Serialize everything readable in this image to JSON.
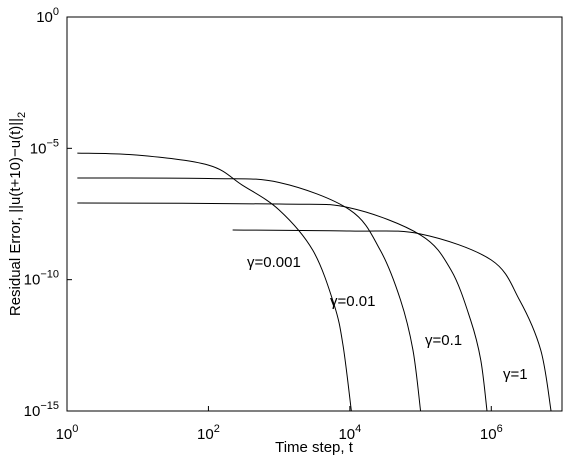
{
  "chart_data": {
    "type": "line",
    "x_label": "Time step, t",
    "y_label": "Residual Error, ||u(t+10)−u(t)||",
    "y_label_sub": "2",
    "log_x": true,
    "log_y": true,
    "grid": false,
    "color": "#000000",
    "xlim": [
      1,
      10000000
    ],
    "ylim": [
      1e-15,
      1
    ],
    "xticks": [
      {
        "value": 1,
        "label": "10",
        "exp": "0"
      },
      {
        "value": 100,
        "label": "10",
        "exp": "2"
      },
      {
        "value": 10000,
        "label": "10",
        "exp": "4"
      },
      {
        "value": 1000000,
        "label": "10",
        "exp": "6"
      }
    ],
    "yticks": [
      {
        "value": 1e-15,
        "label": "10",
        "exp": "−15"
      },
      {
        "value": 1e-10,
        "label": "10",
        "exp": "−10"
      },
      {
        "value": 1e-05,
        "label": "10",
        "exp": "−5"
      },
      {
        "value": 1,
        "label": "10",
        "exp": "0"
      }
    ],
    "series": [
      {
        "name": "γ=0.001",
        "color": "#000000",
        "x": [
          1.4,
          10,
          100,
          300,
          1000,
          3000,
          6000,
          8000,
          10500
        ],
        "values": [
          6.6e-06,
          5.5e-06,
          2.3e-06,
          4e-07,
          4.5e-08,
          1.3e-09,
          1.1e-11,
          3.2e-13,
          1e-15
        ]
      },
      {
        "name": "γ=0.01",
        "color": "#000000",
        "x": [
          1.4,
          100,
          1000,
          10000,
          27000,
          52000,
          78000,
          100000
        ],
        "values": [
          7.4e-07,
          7.1e-07,
          5e-07,
          4.5e-08,
          1.3e-09,
          1.7e-11,
          2.1e-13,
          1e-15
        ]
      },
      {
        "name": "γ=0.1",
        "color": "#000000",
        "x": [
          1.4,
          1000,
          10000,
          100000,
          270000,
          510000,
          710000,
          870000
        ],
        "values": [
          8.3e-08,
          7.6e-08,
          5.4e-08,
          5e-09,
          2.3e-10,
          2.9e-12,
          8.7e-14,
          1e-15
        ]
      },
      {
        "name": "γ=1",
        "color": "#000000",
        "x": [
          220,
          10000,
          100000,
          1000000,
          2500000,
          5000000,
          7000000
        ],
        "values": [
          7.8e-09,
          7.1e-09,
          5.5e-09,
          5.6e-10,
          1.7e-11,
          2.1e-13,
          1e-15
        ]
      }
    ]
  }
}
